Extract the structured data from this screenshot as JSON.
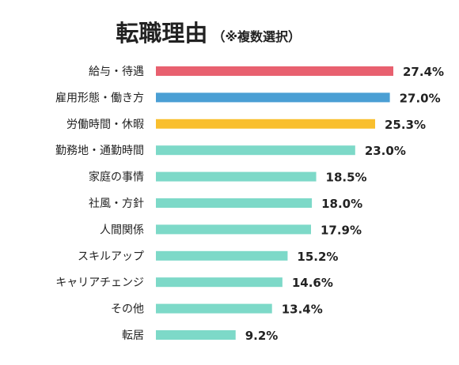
{
  "chart_data": {
    "type": "bar",
    "orientation": "horizontal",
    "title": "転職理由",
    "subtitle": "（※複数選択）",
    "categories": [
      "給与・待遇",
      "雇用形態・働き方",
      "労働時間・休暇",
      "勤務地・通勤時間",
      "家庭の事情",
      "社風・方針",
      "人間関係",
      "スキルアップ",
      "キャリアチェンジ",
      "その他",
      "転居"
    ],
    "values": [
      27.4,
      27.0,
      25.3,
      23.0,
      18.5,
      18.0,
      17.9,
      15.2,
      14.6,
      13.4,
      9.2
    ],
    "value_labels": [
      "27.4%",
      "27.0%",
      "25.3%",
      "23.0%",
      "18.5%",
      "18.0%",
      "17.9%",
      "15.2%",
      "14.6%",
      "13.4%",
      "9.2%"
    ],
    "unit": "%",
    "xlim": [
      0,
      27.4
    ],
    "grid": false,
    "colors": [
      "#e8606f",
      "#4a9fd4",
      "#f9bf2e",
      "#7dd9c8",
      "#7dd9c8",
      "#7dd9c8",
      "#7dd9c8",
      "#7dd9c8",
      "#7dd9c8",
      "#7dd9c8",
      "#7dd9c8"
    ]
  }
}
